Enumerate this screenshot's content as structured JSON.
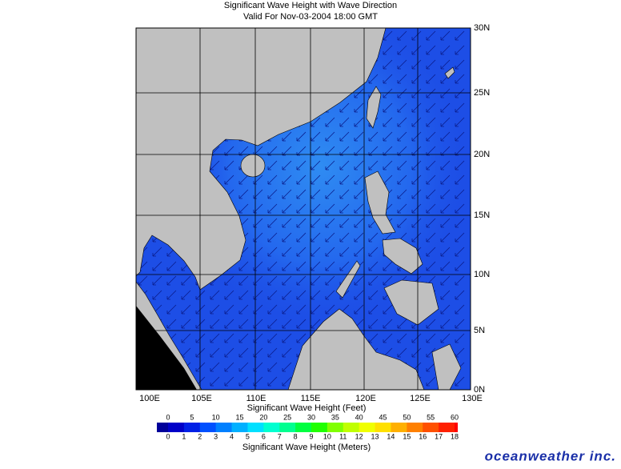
{
  "header": {
    "title": "Significant Wave Height with Wave Direction",
    "subtitle": "Valid For Nov-03-2004 18:00 GMT"
  },
  "map": {
    "lon_labels": [
      "100E",
      "105E",
      "110E",
      "115E",
      "120E",
      "125E",
      "130E"
    ],
    "lat_labels": [
      "30N",
      "25N",
      "20N",
      "15N",
      "10N",
      "5N",
      "0N"
    ]
  },
  "legend": {
    "feet_title": "Significant Wave Height (Feet)",
    "feet_ticks": [
      0,
      5,
      10,
      15,
      20,
      25,
      30,
      35,
      40,
      45,
      50,
      55,
      60
    ],
    "meter_title": "Significant Wave Height (Meters)",
    "meter_ticks": [
      0,
      1,
      2,
      3,
      4,
      5,
      6,
      7,
      8,
      9,
      10,
      11,
      12,
      13,
      14,
      15,
      16,
      17,
      18
    ]
  },
  "brand": "oceanweather inc."
}
